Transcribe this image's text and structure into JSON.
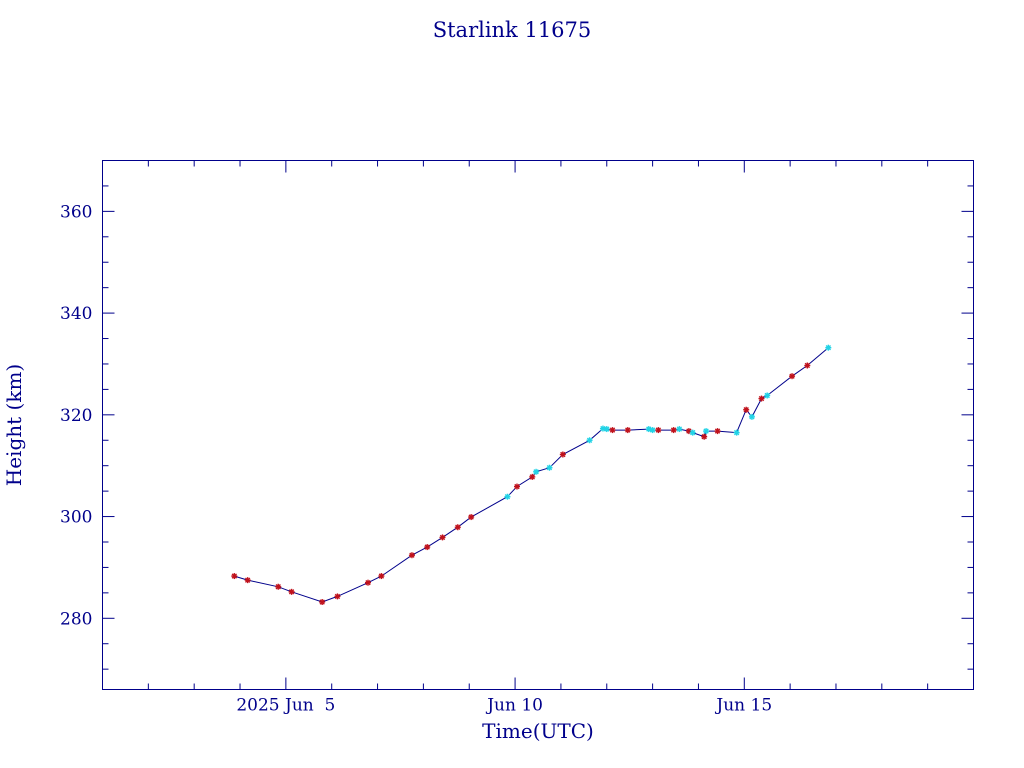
{
  "colors": {
    "axis": "#00008b",
    "line": "#00008b",
    "marker_red": "#c0121c",
    "marker_cyan": "#22d3e6",
    "background": "#ffffff"
  },
  "chart_data": {
    "type": "line",
    "title": "Starlink 11675",
    "xlabel": "Time(UTC)",
    "ylabel": "Height (km)",
    "x_axis_type": "date",
    "xlim": [
      "2025-06-01T00:00",
      "2025-06-20T00:00"
    ],
    "ylim": [
      266,
      370
    ],
    "y_ticks": [
      280,
      300,
      320,
      340,
      360
    ],
    "x_tick_labels": [
      {
        "x": "2025-06-05T00:00",
        "label": "2025 Jun  5"
      },
      {
        "x": "2025-06-10T00:00",
        "label": "Jun 10"
      },
      {
        "x": "2025-06-15T00:00",
        "label": "Jun 15"
      }
    ],
    "grid": false,
    "marker_legend": "none",
    "series": [
      {
        "marker_color": "red",
        "points": [
          {
            "x": "2025-06-03T21:00",
            "y": 288.3
          },
          {
            "x": "2025-06-04T04:00",
            "y": 287.5
          },
          {
            "x": "2025-06-04T20:00",
            "y": 286.2
          },
          {
            "x": "2025-06-05T03:00",
            "y": 285.2
          },
          {
            "x": "2025-06-05T19:00",
            "y": 283.2
          },
          {
            "x": "2025-06-06T03:00",
            "y": 284.3
          },
          {
            "x": "2025-06-06T19:00",
            "y": 287.0
          },
          {
            "x": "2025-06-07T02:00",
            "y": 288.3
          },
          {
            "x": "2025-06-07T18:00",
            "y": 292.4
          },
          {
            "x": "2025-06-08T02:00",
            "y": 294.0
          },
          {
            "x": "2025-06-08T10:00",
            "y": 295.9
          },
          {
            "x": "2025-06-08T18:00",
            "y": 297.9
          },
          {
            "x": "2025-06-09T01:00",
            "y": 299.9
          },
          {
            "x": "2025-06-10T01:00",
            "y": 305.9
          },
          {
            "x": "2025-06-10T09:00",
            "y": 307.8
          },
          {
            "x": "2025-06-11T01:00",
            "y": 312.2
          },
          {
            "x": "2025-06-12T03:00",
            "y": 317.0
          },
          {
            "x": "2025-06-12T11:00",
            "y": 317.0
          },
          {
            "x": "2025-06-13T03:00",
            "y": 317.0
          },
          {
            "x": "2025-06-13T11:00",
            "y": 317.0
          },
          {
            "x": "2025-06-13T19:00",
            "y": 316.8
          },
          {
            "x": "2025-06-14T03:00",
            "y": 315.7
          },
          {
            "x": "2025-06-14T10:00",
            "y": 316.8
          },
          {
            "x": "2025-06-15T01:00",
            "y": 321.0
          },
          {
            "x": "2025-06-15T09:00",
            "y": 323.2
          },
          {
            "x": "2025-06-16T01:00",
            "y": 327.6
          },
          {
            "x": "2025-06-16T09:00",
            "y": 329.7
          }
        ]
      },
      {
        "marker_color": "cyan",
        "points": [
          {
            "x": "2025-06-09T20:00",
            "y": 303.9
          },
          {
            "x": "2025-06-10T11:00",
            "y": 308.8
          },
          {
            "x": "2025-06-10T18:00",
            "y": 309.6
          },
          {
            "x": "2025-06-11T15:00",
            "y": 315.0
          },
          {
            "x": "2025-06-11T22:00",
            "y": 317.3
          },
          {
            "x": "2025-06-12T00:00",
            "y": 317.2
          },
          {
            "x": "2025-06-12T22:00",
            "y": 317.2
          },
          {
            "x": "2025-06-13T00:00",
            "y": 317.0
          },
          {
            "x": "2025-06-13T14:00",
            "y": 317.2
          },
          {
            "x": "2025-06-13T21:00",
            "y": 316.5
          },
          {
            "x": "2025-06-14T04:00",
            "y": 316.8
          },
          {
            "x": "2025-06-14T20:00",
            "y": 316.5
          },
          {
            "x": "2025-06-15T04:00",
            "y": 319.6
          },
          {
            "x": "2025-06-15T12:00",
            "y": 323.8
          },
          {
            "x": "2025-06-16T20:00",
            "y": 333.2
          }
        ]
      }
    ]
  }
}
